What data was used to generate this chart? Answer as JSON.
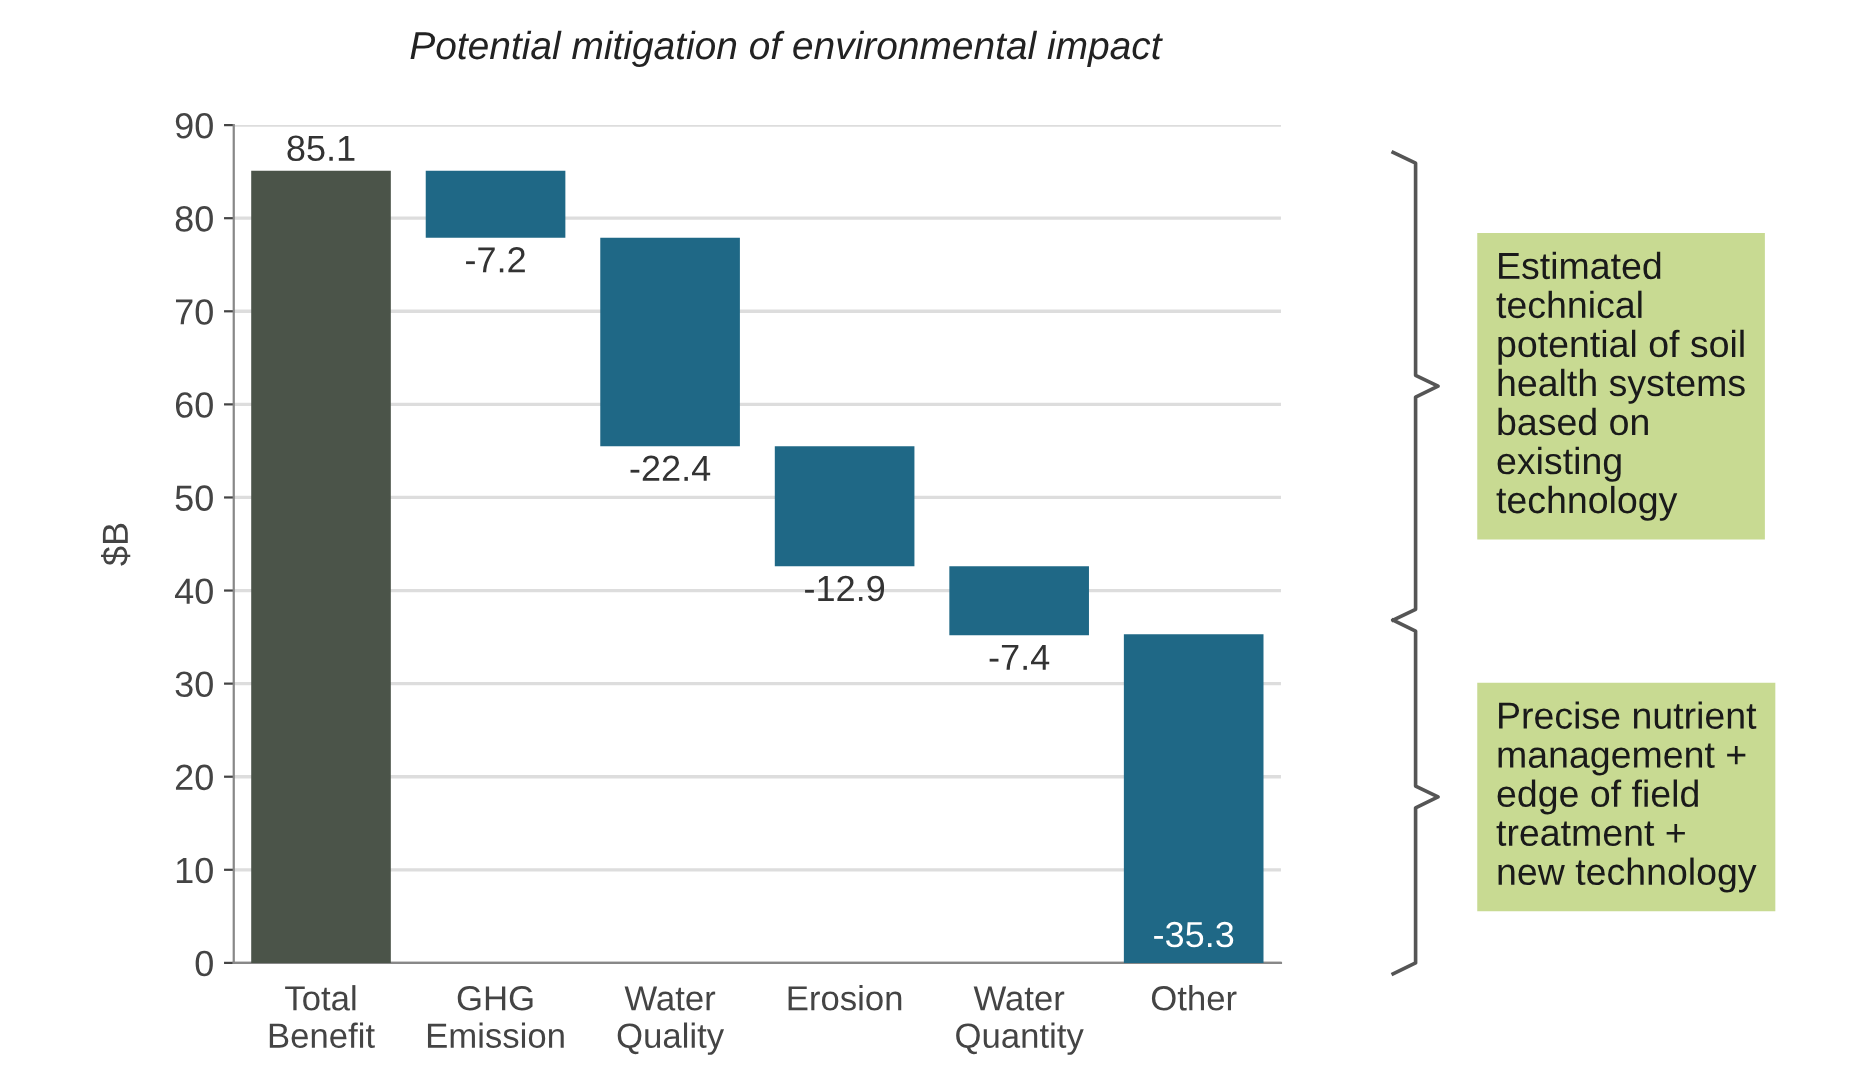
{
  "chart_data": {
    "type": "bar",
    "title": "Potential mitigation of environmental impact",
    "ylabel": "$B",
    "categories": [
      "Total\nBenefit",
      "GHG\nEmission",
      "Water\nQuality",
      "Erosion",
      "Water\nQuantity",
      "Other"
    ],
    "values": [
      85.1,
      -7.2,
      -22.4,
      -12.9,
      -7.4,
      -35.3
    ],
    "base": [
      0,
      85.1,
      77.9,
      55.5,
      42.6,
      35.3
    ],
    "colors": [
      "#4b5449",
      "#1f6886",
      "#1f6886",
      "#1f6886",
      "#1f6886",
      "#1f6886"
    ],
    "ylim": [
      0,
      90
    ],
    "yticks": [
      0,
      10,
      20,
      30,
      40,
      50,
      60,
      70,
      80,
      90
    ],
    "grid": "y",
    "data_labels": true,
    "annotations": [
      "Estimated\ntechnical\npotential of soil\nhealth systems\nbased on\nexisting\ntechnology",
      "Precise nutrient\nmanagement +\nedge of field\ntreatment +\nnew technology"
    ]
  }
}
